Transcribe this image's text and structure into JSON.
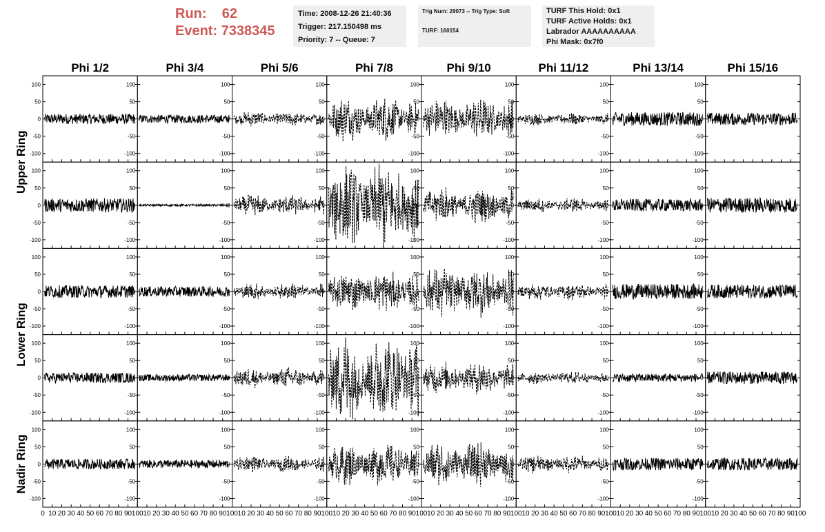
{
  "run": {
    "run_label": "Run:",
    "run_value": "62",
    "event_label": "Event:",
    "event_value": "7338345"
  },
  "info_time": {
    "line1": "Time: 2008-12-26 21:40:36",
    "line2": "Trigger: 217.150498 ms",
    "line3": "Priority: 7 -- Queue: 7"
  },
  "info_trig": {
    "line1": "Trig Num: 29073 -- Trig Type: Soft",
    "line2": "TURF: 160154"
  },
  "info_turf": {
    "line1": "TURF This Hold: 0x1",
    "line2": "TURF Active Holds: 0x1",
    "line3": "Labrador AAAAAAAAAA",
    "line4": "Phi Mask: 0x7f0"
  },
  "colors": {
    "run_text": "#cc5a57",
    "panel_bg": "#efefef",
    "trace": "#000000"
  },
  "chart_data": {
    "type": "line",
    "columns": [
      "Phi 1/2",
      "Phi 3/4",
      "Phi 5/6",
      "Phi 7/8",
      "Phi 9/10",
      "Phi 11/12",
      "Phi 13/14",
      "Phi 15/16"
    ],
    "rows": [
      "Upper Ring",
      "Lower Ring",
      "Nadir Ring"
    ],
    "subrows": 5,
    "row_spans": [
      {
        "label": "Upper Ring",
        "start": 0,
        "end": 2
      },
      {
        "label": "Lower Ring",
        "start": 2,
        "end": 4
      },
      {
        "label": "Nadir Ring",
        "start": 4,
        "end": 5
      }
    ],
    "xlim": [
      0,
      100
    ],
    "x_ticks": [
      0,
      10,
      20,
      30,
      40,
      50,
      60,
      70,
      80,
      90,
      100
    ],
    "ylim": [
      -125,
      125
    ],
    "y_ticks": [
      -100,
      -50,
      0,
      50,
      100
    ],
    "grid": false,
    "trace_style": {
      "dashed_columns": [
        2,
        3,
        4,
        5
      ]
    },
    "amplitudes": [
      [
        15,
        12,
        18,
        55,
        50,
        15,
        20,
        18
      ],
      [
        20,
        3,
        25,
        110,
        45,
        18,
        18,
        22
      ],
      [
        18,
        15,
        20,
        50,
        65,
        20,
        22,
        20
      ],
      [
        15,
        10,
        25,
        110,
        40,
        15,
        12,
        18
      ],
      [
        15,
        12,
        20,
        55,
        55,
        22,
        18,
        18
      ]
    ]
  }
}
